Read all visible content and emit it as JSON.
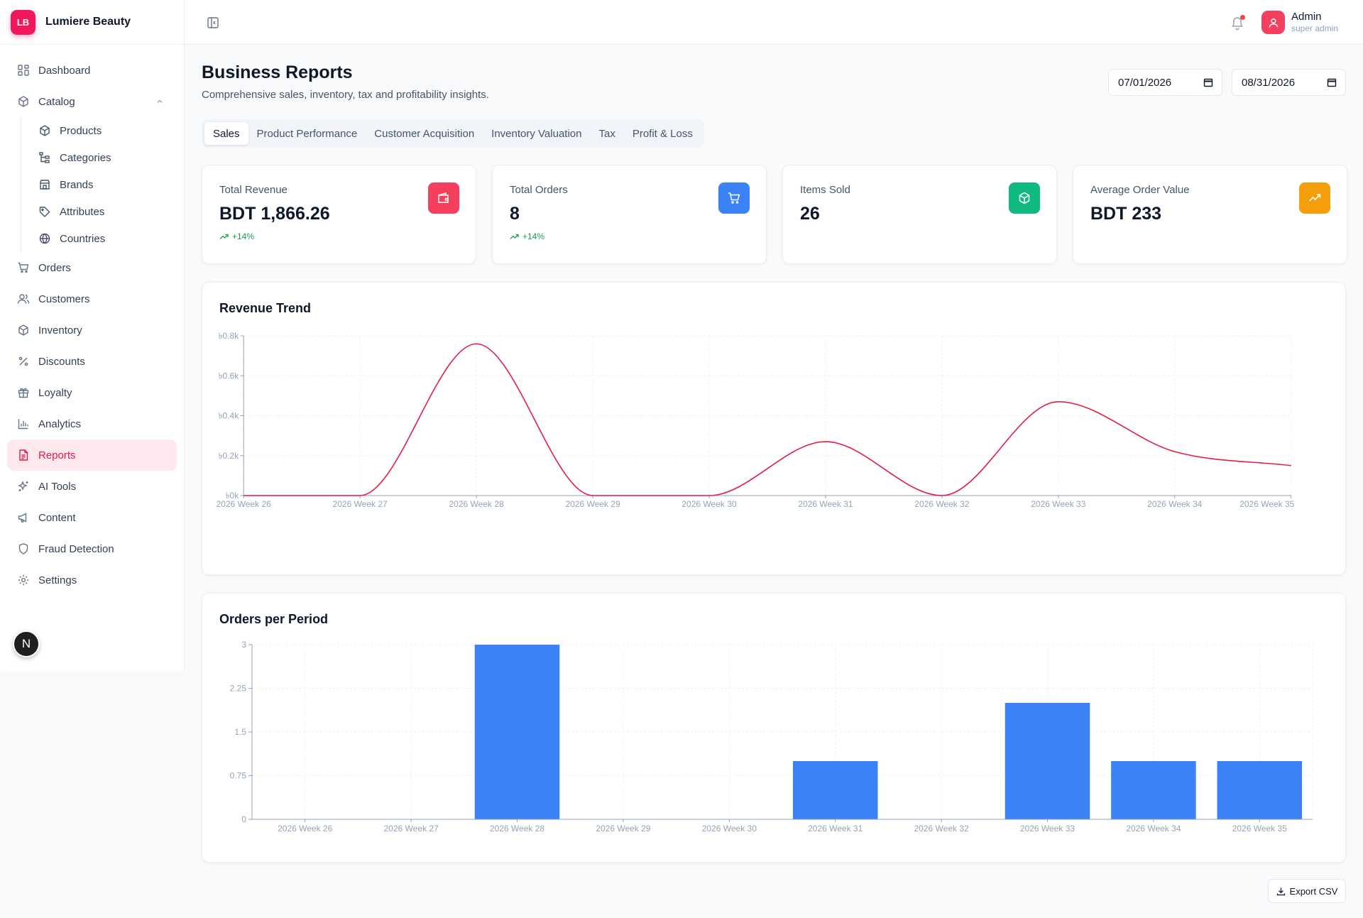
{
  "brand": {
    "initials": "LB",
    "name": "Lumiere Beauty"
  },
  "sidebar": {
    "items": [
      {
        "label": "Dashboard",
        "icon": "dashboard-icon"
      },
      {
        "label": "Catalog",
        "icon": "box-icon"
      },
      {
        "label": "Orders",
        "icon": "cart-icon"
      },
      {
        "label": "Customers",
        "icon": "users-icon"
      },
      {
        "label": "Inventory",
        "icon": "box-icon"
      },
      {
        "label": "Discounts",
        "icon": "percent-icon"
      },
      {
        "label": "Loyalty",
        "icon": "gift-icon"
      },
      {
        "label": "Analytics",
        "icon": "bar-chart-icon"
      },
      {
        "label": "Reports",
        "icon": "file-icon"
      },
      {
        "label": "AI Tools",
        "icon": "sparkles-icon"
      },
      {
        "label": "Content",
        "icon": "megaphone-icon"
      },
      {
        "label": "Fraud Detection",
        "icon": "shield-icon"
      },
      {
        "label": "Settings",
        "icon": "gear-icon"
      }
    ],
    "catalog_sub": [
      {
        "label": "Products",
        "icon": "box-icon"
      },
      {
        "label": "Categories",
        "icon": "tree-icon"
      },
      {
        "label": "Brands",
        "icon": "store-icon"
      },
      {
        "label": "Attributes",
        "icon": "tag-icon"
      },
      {
        "label": "Countries",
        "icon": "globe-icon"
      }
    ],
    "fab_label": "N"
  },
  "user": {
    "name": "Admin",
    "role": "super admin"
  },
  "header": {
    "title": "Business Reports",
    "subtitle": "Comprehensive sales, inventory, tax and profitability insights.",
    "date_from": "07/01/2026",
    "date_to": "08/31/2026"
  },
  "tabs": [
    "Sales",
    "Product Performance",
    "Customer Acquisition",
    "Inventory Valuation",
    "Tax",
    "Profit & Loss"
  ],
  "kpis": [
    {
      "label": "Total Revenue",
      "value": "BDT 1,866.26",
      "delta": "+14%",
      "icon": "wallet-icon",
      "color": "#f43f5e"
    },
    {
      "label": "Total Orders",
      "value": "8",
      "delta": "+14%",
      "icon": "cart-icon",
      "color": "#3b82f6"
    },
    {
      "label": "Items Sold",
      "value": "26",
      "delta": "",
      "icon": "box-icon",
      "color": "#10b981"
    },
    {
      "label": "Average Order Value",
      "value": "BDT 233",
      "delta": "",
      "icon": "trend-up-icon",
      "color": "#f59e0b"
    }
  ],
  "chart_data": [
    {
      "type": "line",
      "title": "Revenue Trend",
      "x": [
        "2026 Week 26",
        "2026 Week 27",
        "2026 Week 28",
        "2026 Week 29",
        "2026 Week 30",
        "2026 Week 31",
        "2026 Week 32",
        "2026 Week 33",
        "2026 Week 34",
        "2026 Week 35"
      ],
      "y_ticks": [
        "৳0k",
        "৳0.2k",
        "৳0.4k",
        "৳0.6k",
        "৳0.8k"
      ],
      "ylim": [
        0,
        0.8
      ],
      "series": [
        {
          "values": [
            0,
            0,
            0.76,
            0,
            0,
            0.27,
            0,
            0.47,
            0.22,
            0.15
          ],
          "color": "#e11d48"
        }
      ],
      "grid": true
    },
    {
      "type": "bar",
      "title": "Orders per Period",
      "categories": [
        "2026 Week 26",
        "2026 Week 27",
        "2026 Week 28",
        "2026 Week 29",
        "2026 Week 30",
        "2026 Week 31",
        "2026 Week 32",
        "2026 Week 33",
        "2026 Week 34",
        "2026 Week 35"
      ],
      "values": [
        0,
        0,
        3,
        0,
        0,
        1,
        0,
        2,
        1,
        1
      ],
      "y_ticks": [
        "0",
        "0.75",
        "1.5",
        "2.25",
        "3"
      ],
      "ylim": [
        0,
        3
      ],
      "color": "#3b82f6",
      "grid": true
    }
  ],
  "export_label": "Export CSV"
}
